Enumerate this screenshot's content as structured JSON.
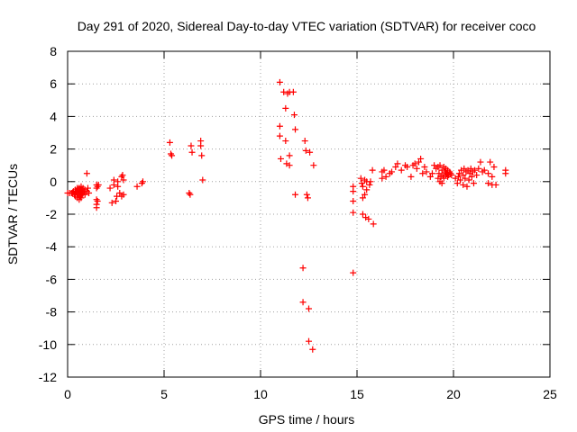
{
  "chart_data": {
    "type": "scatter",
    "title": "Day 291 of 2020, Sidereal Day-to-day VTEC variation (SDTVAR) for receiver coco",
    "xlabel": "GPS time / hours",
    "ylabel": "SDTVAR / TECUs",
    "xlim": [
      0,
      25
    ],
    "ylim": [
      -12,
      8
    ],
    "xticks": [
      0,
      5,
      10,
      15,
      20,
      25
    ],
    "yticks": [
      -12,
      -10,
      -8,
      -6,
      -4,
      -2,
      0,
      2,
      4,
      6,
      8
    ],
    "grid": true,
    "marker": "+",
    "series_color": "#ff0000",
    "series": [
      {
        "name": "SDTVAR",
        "points": [
          [
            0.0,
            -0.7
          ],
          [
            0.1,
            -0.7
          ],
          [
            0.2,
            -0.7
          ],
          [
            0.25,
            -0.7
          ],
          [
            0.3,
            -0.6
          ],
          [
            0.35,
            -0.8
          ],
          [
            0.4,
            -0.5
          ],
          [
            0.4,
            -0.9
          ],
          [
            0.45,
            -0.6
          ],
          [
            0.5,
            -0.4
          ],
          [
            0.5,
            -0.7
          ],
          [
            0.5,
            -1.0
          ],
          [
            0.55,
            -0.5
          ],
          [
            0.55,
            -0.8
          ],
          [
            0.6,
            -0.4
          ],
          [
            0.6,
            -0.7
          ],
          [
            0.6,
            -1.1
          ],
          [
            0.65,
            -0.5
          ],
          [
            0.65,
            -0.9
          ],
          [
            0.7,
            -0.3
          ],
          [
            0.7,
            -0.6
          ],
          [
            0.7,
            -1.0
          ],
          [
            0.75,
            -0.5
          ],
          [
            0.75,
            -0.8
          ],
          [
            0.8,
            -0.4
          ],
          [
            0.8,
            -0.7
          ],
          [
            0.85,
            -0.6
          ],
          [
            0.9,
            -0.5
          ],
          [
            0.9,
            -0.8
          ],
          [
            1.0,
            -0.6
          ],
          [
            1.05,
            -0.4
          ],
          [
            1.1,
            -0.7
          ],
          [
            1.0,
            0.5
          ],
          [
            1.5,
            -0.2
          ],
          [
            1.5,
            -0.4
          ],
          [
            1.5,
            -1.1
          ],
          [
            1.5,
            -1.4
          ],
          [
            1.5,
            -1.6
          ],
          [
            1.55,
            -0.3
          ],
          [
            1.55,
            -1.2
          ],
          [
            1.6,
            -0.2
          ],
          [
            2.2,
            -0.4
          ],
          [
            2.3,
            -1.3
          ],
          [
            2.4,
            -0.2
          ],
          [
            2.4,
            0.1
          ],
          [
            2.5,
            -1.2
          ],
          [
            2.55,
            -0.9
          ],
          [
            2.6,
            -0.3
          ],
          [
            2.6,
            0.0
          ],
          [
            2.7,
            -0.7
          ],
          [
            2.8,
            0.3
          ],
          [
            2.8,
            -0.9
          ],
          [
            2.85,
            0.4
          ],
          [
            2.9,
            -0.8
          ],
          [
            2.9,
            0.1
          ],
          [
            3.6,
            -0.3
          ],
          [
            3.85,
            -0.1
          ],
          [
            3.9,
            0.0
          ],
          [
            5.3,
            2.4
          ],
          [
            5.35,
            1.7
          ],
          [
            5.4,
            1.6
          ],
          [
            6.3,
            -0.7
          ],
          [
            6.35,
            -0.8
          ],
          [
            6.4,
            2.2
          ],
          [
            6.45,
            1.8
          ],
          [
            6.9,
            2.5
          ],
          [
            6.9,
            2.2
          ],
          [
            6.95,
            1.6
          ],
          [
            7.0,
            0.1
          ],
          [
            11.0,
            6.1
          ],
          [
            11.0,
            3.4
          ],
          [
            11.0,
            2.8
          ],
          [
            11.05,
            1.4
          ],
          [
            11.2,
            5.5
          ],
          [
            11.3,
            4.5
          ],
          [
            11.3,
            2.5
          ],
          [
            11.35,
            1.1
          ],
          [
            11.4,
            5.4
          ],
          [
            11.5,
            5.5
          ],
          [
            11.5,
            1.6
          ],
          [
            11.5,
            1.0
          ],
          [
            11.7,
            5.5
          ],
          [
            11.75,
            4.1
          ],
          [
            11.8,
            3.2
          ],
          [
            11.8,
            -0.8
          ],
          [
            12.2,
            -5.3
          ],
          [
            12.2,
            -7.4
          ],
          [
            12.3,
            2.5
          ],
          [
            12.35,
            1.9
          ],
          [
            12.4,
            -0.8
          ],
          [
            12.45,
            -1.0
          ],
          [
            12.5,
            -7.8
          ],
          [
            12.5,
            -9.8
          ],
          [
            12.55,
            1.8
          ],
          [
            12.7,
            -10.3
          ],
          [
            12.75,
            1.0
          ],
          [
            14.8,
            -0.3
          ],
          [
            14.8,
            -0.6
          ],
          [
            14.8,
            -1.2
          ],
          [
            14.8,
            -1.9
          ],
          [
            14.8,
            -5.6
          ],
          [
            15.2,
            0.2
          ],
          [
            15.25,
            -0.1
          ],
          [
            15.3,
            -0.3
          ],
          [
            15.3,
            -1.0
          ],
          [
            15.3,
            -2.0
          ],
          [
            15.4,
            0.1
          ],
          [
            15.4,
            -0.8
          ],
          [
            15.45,
            -2.2
          ],
          [
            15.5,
            0.0
          ],
          [
            15.5,
            -0.5
          ],
          [
            15.6,
            -2.3
          ],
          [
            15.65,
            -0.2
          ],
          [
            15.7,
            0.0
          ],
          [
            15.8,
            0.7
          ],
          [
            15.85,
            -2.6
          ],
          [
            16.3,
            0.2
          ],
          [
            16.3,
            0.6
          ],
          [
            16.4,
            0.7
          ],
          [
            16.5,
            0.3
          ],
          [
            16.7,
            0.5
          ],
          [
            16.8,
            0.6
          ],
          [
            17.0,
            0.9
          ],
          [
            17.1,
            1.1
          ],
          [
            17.3,
            0.7
          ],
          [
            17.5,
            1.0
          ],
          [
            17.6,
            0.9
          ],
          [
            17.8,
            0.3
          ],
          [
            17.9,
            1.0
          ],
          [
            18.0,
            1.1
          ],
          [
            18.1,
            0.8
          ],
          [
            18.2,
            1.2
          ],
          [
            18.3,
            1.4
          ],
          [
            18.4,
            0.5
          ],
          [
            18.5,
            0.9
          ],
          [
            18.6,
            0.6
          ],
          [
            18.8,
            0.3
          ],
          [
            18.9,
            0.5
          ],
          [
            19.0,
            1.0
          ],
          [
            19.1,
            0.8
          ],
          [
            19.2,
            0.2
          ],
          [
            19.2,
            0.9
          ],
          [
            19.25,
            0.5
          ],
          [
            19.3,
            0.0
          ],
          [
            19.3,
            1.0
          ],
          [
            19.35,
            0.3
          ],
          [
            19.4,
            -0.1
          ],
          [
            19.4,
            0.7
          ],
          [
            19.45,
            0.4
          ],
          [
            19.5,
            0.9
          ],
          [
            19.5,
            0.2
          ],
          [
            19.55,
            0.6
          ],
          [
            19.6,
            0.4
          ],
          [
            19.6,
            0.8
          ],
          [
            19.65,
            0.5
          ],
          [
            19.7,
            0.3
          ],
          [
            19.7,
            0.7
          ],
          [
            19.75,
            0.4
          ],
          [
            19.8,
            0.6
          ],
          [
            19.85,
            0.5
          ],
          [
            19.9,
            0.4
          ],
          [
            20.1,
            0.2
          ],
          [
            20.2,
            -0.1
          ],
          [
            20.25,
            0.3
          ],
          [
            20.3,
            0.5
          ],
          [
            20.35,
            0.1
          ],
          [
            20.4,
            0.7
          ],
          [
            20.5,
            0.4
          ],
          [
            20.5,
            -0.2
          ],
          [
            20.55,
            0.8
          ],
          [
            20.6,
            0.2
          ],
          [
            20.65,
            0.6
          ],
          [
            20.7,
            -0.3
          ],
          [
            20.75,
            0.7
          ],
          [
            20.8,
            0.1
          ],
          [
            20.85,
            0.5
          ],
          [
            20.9,
            0.8
          ],
          [
            20.95,
            0.3
          ],
          [
            21.0,
            0.6
          ],
          [
            21.05,
            -0.1
          ],
          [
            21.1,
            0.7
          ],
          [
            21.2,
            0.4
          ],
          [
            21.3,
            0.8
          ],
          [
            21.4,
            1.2
          ],
          [
            21.5,
            0.6
          ],
          [
            21.6,
            0.7
          ],
          [
            21.8,
            -0.1
          ],
          [
            21.8,
            0.5
          ],
          [
            21.9,
            1.2
          ],
          [
            22.0,
            0.3
          ],
          [
            22.0,
            -0.2
          ],
          [
            22.1,
            0.9
          ],
          [
            22.2,
            -0.2
          ],
          [
            22.7,
            0.7
          ],
          [
            22.7,
            0.5
          ]
        ]
      }
    ]
  }
}
